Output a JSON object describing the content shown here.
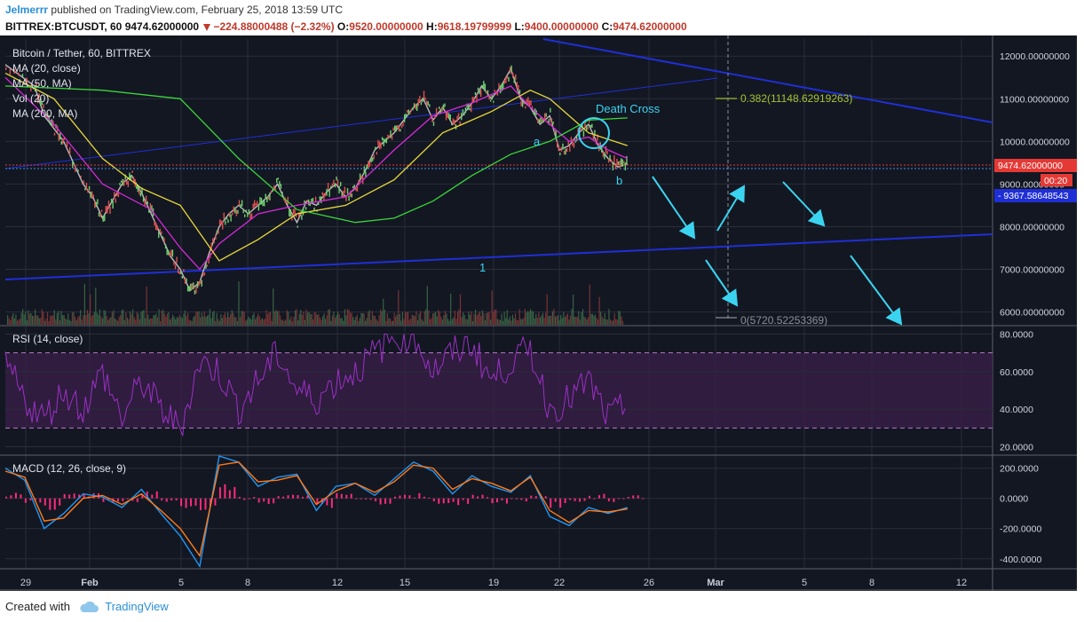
{
  "header": {
    "user": "Jelmerrr",
    "published_text": "published on TradingView.com, February 25, 2018 13:59 UTC",
    "symbol": "BITTREX:BTCUSDT, 60",
    "last": "9474.62000000",
    "change": "−224.88000488 (−2.32%)",
    "o_label": "O:",
    "o": "9520.00000000",
    "h_label": "H:",
    "h": "9618.19799999",
    "l_label": "L:",
    "l": "9400.00000000",
    "c_label": "C:",
    "c": "9474.62000000"
  },
  "footer": {
    "created_with": "Created with",
    "brand": "TradingView"
  },
  "colors": {
    "background": "#131722",
    "grid": "#2a2e39",
    "text": "#d1d4dc",
    "ma20": "#d62ad6",
    "ma50": "#e8d93a",
    "ma200": "#3bd53b",
    "trendline": "#1f2fd6",
    "annotation": "#3bd4f0",
    "rsi": "#9b30c4",
    "macd": "#2196f3",
    "signal": "#ff7a1a",
    "hist": "#ff2a7a",
    "last_price_tag": "#e53935",
    "line_tag": "#1f2fd6"
  },
  "chart_data": [
    {
      "type": "line",
      "title": "Bitcoin / Tether, 60, BITTREX",
      "indicators": [
        "MA (20, close)",
        "MA (50, MA)",
        "Vol (20)",
        "MA (200, MA)"
      ],
      "x_labels": [
        "29",
        "Feb",
        "5",
        "8",
        "12",
        "15",
        "19",
        "22",
        "26",
        "Mar",
        "5",
        "8",
        "12"
      ],
      "ylim": [
        5700,
        12400
      ],
      "y_ticks": [
        "12000.00000000",
        "11000.00000000",
        "10000.00000000",
        "9000.00000000",
        "8000.00000000",
        "7000.00000000",
        "6000.00000000"
      ],
      "series": [
        {
          "name": "price",
          "x": [
            0,
            3,
            4,
            5,
            6,
            8,
            9,
            10,
            11,
            12,
            13,
            14,
            15,
            16,
            17,
            18,
            19,
            20,
            21,
            22,
            23,
            24,
            25,
            26,
            27,
            28,
            29,
            30,
            31,
            32,
            33,
            34,
            35,
            36,
            37,
            38,
            39,
            40,
            41,
            42,
            43,
            44,
            45,
            46,
            47,
            48,
            49,
            50,
            51,
            52,
            53,
            54,
            55,
            56,
            57,
            58,
            59,
            60,
            61,
            62,
            63,
            64
          ],
          "y": [
            11800,
            11300,
            10600,
            10300,
            10000,
            9000,
            8700,
            8200,
            8600,
            9000,
            9200,
            8800,
            8300,
            7800,
            7300,
            7000,
            6500,
            6700,
            7400,
            8000,
            8300,
            8500,
            8300,
            8500,
            8700,
            9000,
            8500,
            8100,
            8600,
            8500,
            8800,
            9000,
            8700,
            8900,
            9300,
            9800,
            10000,
            10200,
            10500,
            10800,
            11000,
            10500,
            10800,
            10400,
            10600,
            10900,
            11300,
            11000,
            11300,
            11700,
            11000,
            10800,
            10400,
            10600,
            9800,
            9900,
            10200,
            10400,
            9900,
            9600,
            9400,
            9474
          ]
        },
        {
          "name": "MA (20, close)",
          "x": [
            0,
            5,
            10,
            15,
            18,
            20,
            22,
            26,
            30,
            35,
            40,
            44,
            48,
            52,
            54,
            56,
            58,
            60,
            62,
            64
          ],
          "y": [
            11500,
            10400,
            9000,
            8400,
            7500,
            7000,
            7600,
            8300,
            8500,
            8700,
            9800,
            10600,
            10900,
            11300,
            10800,
            10400,
            10000,
            10100,
            9800,
            9600
          ]
        },
        {
          "name": "MA (50, MA)",
          "x": [
            0,
            5,
            10,
            14,
            18,
            22,
            26,
            30,
            35,
            40,
            45,
            50,
            54,
            56,
            60,
            64
          ],
          "y": [
            11600,
            11000,
            9600,
            8900,
            8500,
            7200,
            7700,
            8300,
            8500,
            9100,
            10200,
            10700,
            11200,
            11000,
            10200,
            9900
          ]
        },
        {
          "name": "MA (200, MA)",
          "x": [
            0,
            10,
            18,
            24,
            30,
            36,
            40,
            44,
            48,
            52,
            56,
            60,
            64
          ],
          "y": [
            11300,
            11200,
            11000,
            9600,
            8400,
            8100,
            8200,
            8600,
            9200,
            9700,
            10000,
            10500,
            10550
          ]
        }
      ],
      "annotations": [
        "Death Cross",
        "a",
        "b",
        "1",
        "0.382(11148.62919263)",
        "0(5720.52253369)"
      ],
      "price_tags": {
        "last": "9474.62000000",
        "countdown": "00:20",
        "line": "9367.58648543"
      }
    },
    {
      "type": "line",
      "title": "RSI (14, close)",
      "ylim": [
        16,
        84
      ],
      "y_ticks": [
        "80.0000",
        "60.0000",
        "40.0000",
        "20.0000"
      ],
      "bands": [
        30,
        70
      ],
      "series": [
        {
          "name": "RSI",
          "x": [
            0,
            2,
            4,
            6,
            8,
            10,
            12,
            14,
            16,
            18,
            20,
            22,
            24,
            26,
            28,
            30,
            32,
            34,
            36,
            38,
            40,
            42,
            44,
            46,
            48,
            50,
            52,
            54,
            56,
            58,
            60,
            62,
            64
          ],
          "y": [
            65,
            45,
            35,
            50,
            40,
            60,
            35,
            55,
            40,
            30,
            65,
            60,
            40,
            55,
            70,
            50,
            45,
            55,
            60,
            70,
            78,
            80,
            60,
            70,
            75,
            55,
            65,
            72,
            40,
            45,
            55,
            35,
            42
          ]
        }
      ]
    },
    {
      "type": "bar",
      "title": "MACD (12, 26, close, 9)",
      "ylim": [
        -460,
        280
      ],
      "y_ticks": [
        "200.0000",
        "0.0000",
        "-200.0000",
        "-400.0000"
      ],
      "series": [
        {
          "name": "MACD",
          "x": [
            0,
            2,
            4,
            6,
            8,
            10,
            12,
            14,
            16,
            18,
            20,
            22,
            24,
            26,
            28,
            30,
            32,
            34,
            36,
            38,
            40,
            42,
            44,
            46,
            48,
            50,
            52,
            54,
            56,
            58,
            60,
            62,
            64
          ],
          "y": [
            200,
            120,
            -200,
            -100,
            30,
            10,
            -60,
            60,
            -100,
            -250,
            -450,
            280,
            240,
            80,
            140,
            160,
            -80,
            80,
            100,
            20,
            130,
            240,
            180,
            30,
            150,
            80,
            40,
            150,
            -120,
            -180,
            -60,
            -100,
            -60
          ]
        },
        {
          "name": "Signal",
          "x": [
            0,
            2,
            4,
            6,
            8,
            10,
            12,
            14,
            16,
            18,
            20,
            22,
            24,
            26,
            28,
            30,
            32,
            34,
            36,
            38,
            40,
            42,
            44,
            46,
            48,
            50,
            52,
            54,
            56,
            58,
            60,
            62,
            64
          ],
          "y": [
            180,
            140,
            -150,
            -130,
            0,
            20,
            -40,
            30,
            -80,
            -200,
            -380,
            220,
            240,
            110,
            120,
            150,
            -40,
            50,
            100,
            40,
            110,
            220,
            200,
            60,
            130,
            100,
            50,
            140,
            -80,
            -160,
            -80,
            -90,
            -70
          ]
        }
      ]
    }
  ]
}
